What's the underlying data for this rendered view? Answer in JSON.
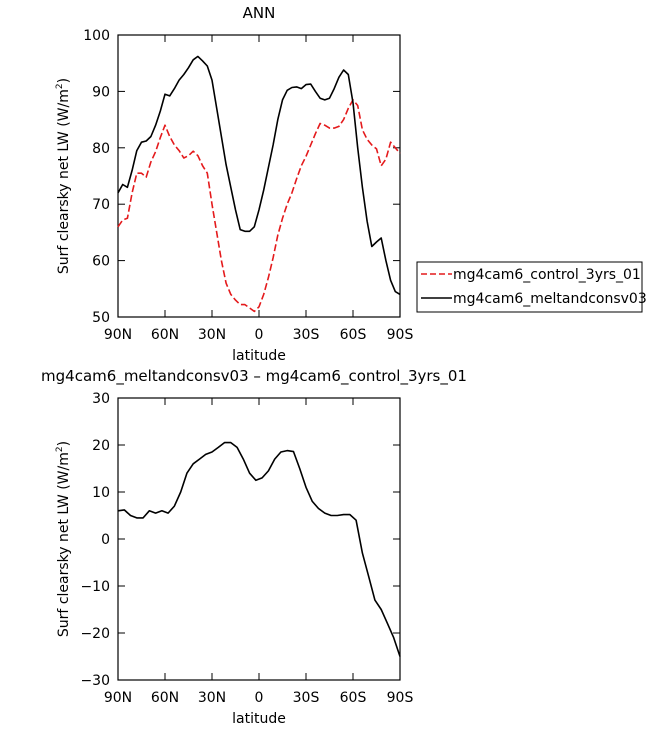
{
  "chart_data": [
    {
      "type": "line",
      "title": "ANN",
      "xlabel": "latitude",
      "ylabel": "Surf clearsky net LW (W/m",
      "ylabel_sup": "2",
      "ylabel_close": ")",
      "xlim": [
        -90,
        90
      ],
      "ylim": [
        50,
        100
      ],
      "yticks": [
        50,
        60,
        70,
        80,
        90,
        100
      ],
      "xtick_values": [
        -90,
        -60,
        -30,
        0,
        30,
        60,
        90
      ],
      "xtick_labels": [
        "90N",
        "60N",
        "30N",
        "0",
        "30S",
        "60S",
        "90S"
      ],
      "grid": false,
      "legend_position": "right",
      "series": [
        {
          "name": "mg4cam6_control_3yrs_01",
          "color": "#e41a1c",
          "style": "dashed",
          "x": [
            -90,
            -87,
            -84,
            -81,
            -78,
            -75,
            -72,
            -69,
            -66,
            -63,
            -60,
            -57,
            -54,
            -51,
            -48,
            -45,
            -42,
            -39,
            -36,
            -33,
            -30,
            -27,
            -24,
            -21,
            -18,
            -15,
            -12,
            -9,
            -6,
            -3,
            0,
            3,
            6,
            9,
            12,
            15,
            18,
            21,
            24,
            27,
            30,
            33,
            36,
            39,
            42,
            45,
            48,
            51,
            54,
            57,
            60,
            63,
            66,
            69,
            72,
            75,
            78,
            81,
            84,
            87,
            90
          ],
          "y": [
            66,
            67.2,
            67.5,
            72,
            75.5,
            75.5,
            74.8,
            77.5,
            79.3,
            81.8,
            84,
            82,
            80.5,
            79.5,
            78.2,
            78.6,
            79.4,
            78.6,
            76.8,
            75.5,
            70,
            65,
            60,
            56,
            54,
            53,
            52.2,
            52.2,
            51.6,
            51,
            51.8,
            54,
            57,
            60.5,
            64.5,
            67.5,
            70,
            72,
            74.5,
            76.8,
            78.5,
            80.5,
            82.5,
            84.3,
            84,
            83.5,
            83.5,
            83.8,
            85,
            87,
            88.5,
            87.5,
            83.2,
            81.5,
            80.5,
            79.8,
            76.8,
            78,
            81,
            80,
            79
          ]
        },
        {
          "name": "mg4cam6_meltandconsv03",
          "color": "#000000",
          "style": "solid",
          "x": [
            -90,
            -87,
            -84,
            -81,
            -78,
            -75,
            -72,
            -69,
            -66,
            -63,
            -60,
            -57,
            -54,
            -51,
            -48,
            -45,
            -42,
            -39,
            -36,
            -33,
            -30,
            -27,
            -24,
            -21,
            -18,
            -15,
            -12,
            -9,
            -6,
            -3,
            0,
            3,
            6,
            9,
            12,
            15,
            18,
            21,
            24,
            27,
            30,
            33,
            36,
            39,
            42,
            45,
            48,
            51,
            54,
            57,
            60,
            63,
            66,
            69,
            72,
            75,
            78,
            81,
            84,
            87,
            90
          ],
          "y": [
            72,
            73.5,
            73,
            76,
            79.5,
            81,
            81.2,
            82,
            84,
            86.5,
            89.5,
            89.2,
            90.5,
            92,
            93,
            94.2,
            95.6,
            96.2,
            95.4,
            94.5,
            92,
            87,
            82,
            77,
            73,
            69,
            65.5,
            65.2,
            65.2,
            66,
            69,
            72.5,
            76.5,
            80.5,
            85,
            88.5,
            90.2,
            90.7,
            90.8,
            90.5,
            91.2,
            91.3,
            90,
            88.8,
            88.5,
            88.8,
            90.5,
            92.5,
            93.8,
            93,
            88,
            80,
            73,
            67,
            62.5,
            63.3,
            64,
            60,
            56.5,
            54.5,
            54
          ]
        }
      ]
    },
    {
      "type": "line",
      "title": "mg4cam6_meltandconsv03 – mg4cam6_control_3yrs_01",
      "xlabel": "latitude",
      "ylabel": "Surf clearsky net LW (W/m",
      "ylabel_sup": "2",
      "ylabel_close": ")",
      "xlim": [
        -90,
        90
      ],
      "ylim": [
        -30,
        30
      ],
      "yticks": [
        -30,
        -20,
        -10,
        0,
        10,
        20,
        30
      ],
      "xtick_values": [
        -90,
        -60,
        -30,
        0,
        30,
        60,
        90
      ],
      "xtick_labels": [
        "90N",
        "60N",
        "30N",
        "0",
        "30S",
        "60S",
        "90S"
      ],
      "grid": false,
      "series": [
        {
          "name": "mg4cam6_meltandconsv03 - mg4cam6_control_3yrs_01",
          "color": "#000000",
          "style": "solid",
          "x": [
            -90,
            -86,
            -82,
            -78,
            -74,
            -70,
            -66,
            -62,
            -58,
            -54,
            -50,
            -46,
            -42,
            -38,
            -34,
            -30,
            -26,
            -22,
            -18,
            -14,
            -10,
            -6,
            -2,
            2,
            6,
            10,
            14,
            18,
            22,
            26,
            30,
            34,
            38,
            42,
            46,
            50,
            54,
            58,
            62,
            66,
            70,
            74,
            78,
            82,
            86,
            90
          ],
          "y": [
            6,
            6.2,
            5,
            4.5,
            4.5,
            6,
            5.5,
            6,
            5.5,
            7,
            10,
            14,
            16,
            17,
            18,
            18.5,
            19.5,
            20.5,
            20.5,
            19.5,
            17,
            14,
            12.5,
            13,
            14.5,
            17,
            18.5,
            18.8,
            18.6,
            15,
            11,
            8,
            6.5,
            5.5,
            5,
            5,
            5.2,
            5.2,
            4,
            -3,
            -8,
            -13,
            -15,
            -18,
            -21,
            -25
          ]
        }
      ]
    }
  ]
}
